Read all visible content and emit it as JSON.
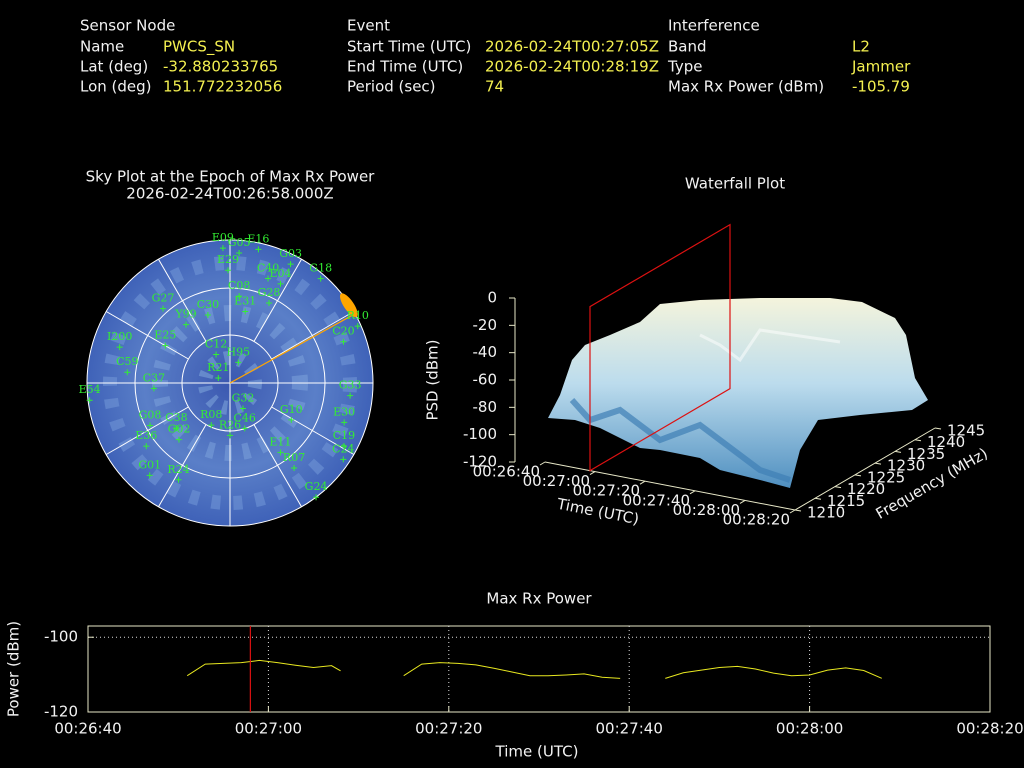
{
  "info": {
    "sections": [
      {
        "title": "Sensor Node",
        "rows": [
          {
            "label": "Name",
            "value": "PWCS_SN"
          },
          {
            "label": "Lat (deg)",
            "value": -32.880233765
          },
          {
            "label": "Lon (deg)",
            "value": 151.772232056
          }
        ]
      },
      {
        "title": "Event",
        "rows": [
          {
            "label": "Start Time (UTC)",
            "value": "2026-02-24T00:27:05Z"
          },
          {
            "label": "End Time (UTC)",
            "value": "2026-02-24T00:28:19Z"
          },
          {
            "label": "Period (sec)",
            "value": 74
          }
        ]
      },
      {
        "title": "Interference",
        "rows": [
          {
            "label": "Band",
            "value": "L2"
          },
          {
            "label": "Type",
            "value": "Jammer"
          },
          {
            "label": "Max Rx Power (dBm)",
            "value": -105.79
          }
        ]
      }
    ]
  },
  "chart_data": [
    {
      "type": "polar",
      "title": "Sky Plot at the Epoch of Max Rx Power",
      "subtitle": "2026-02-24T00:26:58.000Z",
      "color": "#33ee33",
      "jammer_color": "#ffa500",
      "jammer_azimuth": 61,
      "satellites": [
        {
          "name": "E09",
          "az": 357,
          "el": 5
        },
        {
          "name": "G05",
          "az": 4,
          "el": 8
        },
        {
          "name": "E16",
          "az": 12,
          "el": 4
        },
        {
          "name": "E29",
          "az": 359,
          "el": 19
        },
        {
          "name": "G03",
          "az": 27,
          "el": 6
        },
        {
          "name": "C40",
          "az": 20,
          "el": 20
        },
        {
          "name": "E04",
          "az": 27,
          "el": 20
        },
        {
          "name": "G18",
          "az": 41,
          "el": 3
        },
        {
          "name": "C08",
          "az": 6,
          "el": 35
        },
        {
          "name": "G28",
          "az": 26,
          "el": 34
        },
        {
          "name": "G27",
          "az": 318,
          "el": 27
        },
        {
          "name": "C30",
          "az": 342,
          "el": 45
        },
        {
          "name": "E31",
          "az": 12,
          "el": 44
        },
        {
          "name": "Y99",
          "az": 323,
          "el": 44
        },
        {
          "name": "E25",
          "az": 300,
          "el": 43
        },
        {
          "name": "C12",
          "az": 334,
          "el": 70
        },
        {
          "name": "H95",
          "az": 22,
          "el": 76
        },
        {
          "name": "R21",
          "az": 293,
          "el": 82
        },
        {
          "name": "I200",
          "az": 288,
          "el": 17
        },
        {
          "name": "C59",
          "az": 276,
          "el": 25
        },
        {
          "name": "C37",
          "az": 266,
          "el": 42
        },
        {
          "name": "E54",
          "az": 263,
          "el": 1
        },
        {
          "name": "G08",
          "az": 242,
          "el": 33
        },
        {
          "name": "C38",
          "az": 230,
          "el": 46
        },
        {
          "name": "G02",
          "az": 222,
          "el": 42
        },
        {
          "name": "E36",
          "az": 233,
          "el": 24
        },
        {
          "name": "R08",
          "az": 204,
          "el": 61
        },
        {
          "name": "C46",
          "az": 162,
          "el": 60
        },
        {
          "name": "R26",
          "az": 180,
          "el": 57
        },
        {
          "name": "G32",
          "az": 153,
          "el": 72
        },
        {
          "name": "G10",
          "az": 121,
          "el": 45
        },
        {
          "name": "G33",
          "az": 96,
          "el": 14
        },
        {
          "name": "E30",
          "az": 109,
          "el": 14
        },
        {
          "name": "C19",
          "az": 119,
          "el": 8
        },
        {
          "name": "E11",
          "az": 144,
          "el": 36
        },
        {
          "name": "R07",
          "az": 143,
          "el": 23
        },
        {
          "name": "C24",
          "az": 124,
          "el": 4
        },
        {
          "name": "G01",
          "az": 221,
          "el": 13
        },
        {
          "name": "R24",
          "az": 208,
          "el": 21
        },
        {
          "name": "G24",
          "az": 143,
          "el": 0
        },
        {
          "name": "R10",
          "az": 66,
          "el": 2
        },
        {
          "name": "C20",
          "az": 70,
          "el": 14
        }
      ]
    },
    {
      "type": "surface3d",
      "title": "Waterfall Plot",
      "xlabel": "Time (UTC)",
      "ylabel": "Frequency (MHz)",
      "zlabel": "PSD (dBm)",
      "xlim": [
        0,
        100
      ],
      "xticks": [
        {
          "value": 0,
          "label": "00:26:40"
        },
        {
          "value": 20,
          "label": "00:27:00"
        },
        {
          "value": 40,
          "label": "00:27:20"
        },
        {
          "value": 60,
          "label": "00:27:40"
        },
        {
          "value": 80,
          "label": "00:28:00"
        },
        {
          "value": 100,
          "label": "00:28:20"
        }
      ],
      "ylim": [
        1210,
        1245
      ],
      "yticks": [
        1210,
        1215,
        1220,
        1225,
        1230,
        1235,
        1240,
        1245
      ],
      "zlim": [
        -120,
        0
      ],
      "zticks": [
        0,
        -20,
        -40,
        -60,
        -80,
        -100,
        -120
      ],
      "marker_x": 18,
      "marker_color": "#dd1111"
    },
    {
      "type": "line",
      "title": "Max Rx Power",
      "xlabel": "Time (UTC)",
      "ylabel": "Power (dBm)",
      "x": [
        11,
        13,
        15,
        17,
        19,
        21,
        23,
        25,
        27,
        28,
        31,
        35,
        37,
        39,
        41,
        43,
        45,
        47,
        49,
        51,
        53,
        55,
        57,
        59,
        61,
        64,
        66,
        68,
        70,
        72,
        74,
        76,
        78,
        80,
        82,
        84,
        86,
        88
      ],
      "series": [
        {
          "color": "#e8e820",
          "values": [
            -110.3,
            -107.2,
            -107,
            -106.8,
            -106.2,
            -106.8,
            -107.5,
            -108.1,
            -107.6,
            -109,
            null,
            -110.3,
            -107.2,
            -106.8,
            -107,
            -107.4,
            -108.3,
            -109.3,
            -110.3,
            -110.3,
            -110.1,
            -109.8,
            -110.7,
            -111,
            null,
            -111,
            -109.5,
            -108.8,
            -108.1,
            -107.8,
            -108.5,
            -109.6,
            -110.3,
            -110.1,
            -108.8,
            -108.2,
            -108.9,
            -111
          ]
        }
      ],
      "xlim": [
        0,
        100
      ],
      "xticks": [
        {
          "value": 0,
          "label": "00:26:40"
        },
        {
          "value": 20,
          "label": "00:27:00"
        },
        {
          "value": 40,
          "label": "00:27:20"
        },
        {
          "value": 60,
          "label": "00:27:40"
        },
        {
          "value": 80,
          "label": "00:28:00"
        },
        {
          "value": 100,
          "label": "00:28:20"
        }
      ],
      "ylim": [
        -120,
        -97
      ],
      "yticks": [
        -120,
        -100
      ],
      "grid": true,
      "marker_x": 18,
      "marker_color": "#dd1111"
    }
  ]
}
